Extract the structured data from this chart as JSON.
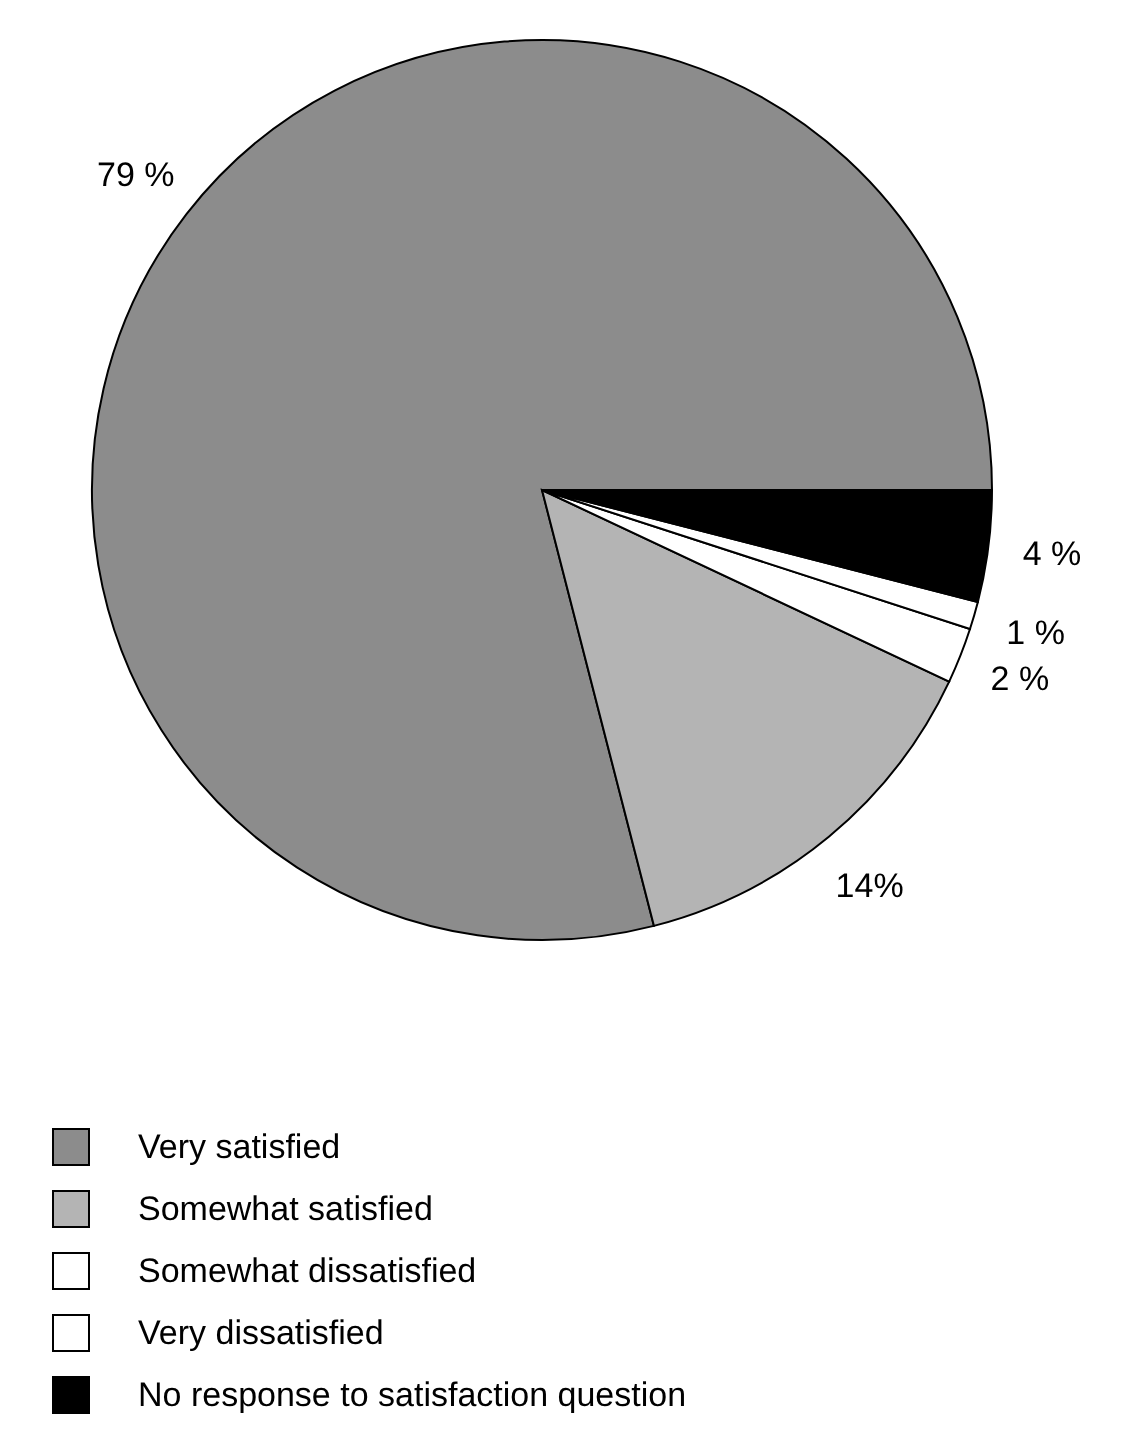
{
  "chart_data": {
    "type": "pie",
    "categories": [
      "Very satisfied",
      "Somewhat satisfied",
      "Somewhat dissatisfied",
      "Very dissatisfied",
      "No response to satisfaction question"
    ],
    "values": [
      79,
      14,
      2,
      1,
      4
    ],
    "value_labels": [
      "79 %",
      "14%",
      "2 %",
      "1 %",
      "4 %"
    ],
    "colors": [
      "#8c8c8c",
      "#b4b4b4",
      "#ffffff",
      "#ffffff",
      "#000000"
    ],
    "legend": "bottom left"
  }
}
